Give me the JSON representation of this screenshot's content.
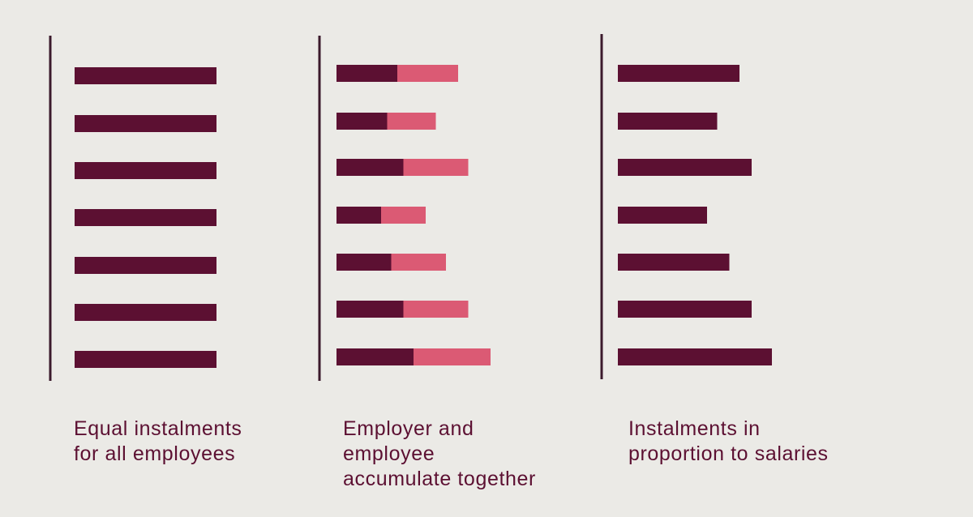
{
  "colors": {
    "background": "#ebeae6",
    "employer": "#5c1032",
    "employee": "#db5a74",
    "axis": "#3b1a2c",
    "caption": "#5c1032"
  },
  "chart_data": [
    {
      "type": "bar",
      "orientation": "horizontal",
      "caption_lines": [
        "Equal instalments",
        "for all employees"
      ],
      "series": [
        {
          "color": "employer",
          "values": [
            7,
            7,
            7,
            7,
            7,
            7,
            7
          ]
        }
      ]
    },
    {
      "type": "bar",
      "orientation": "horizontal",
      "stacked": true,
      "caption_lines": [
        "Employer and",
        "employee",
        "accumulate together"
      ],
      "series": [
        {
          "color": "employer",
          "values": [
            3,
            2.5,
            3.3,
            2.2,
            2.7,
            3.3,
            3.8
          ]
        },
        {
          "color": "employee",
          "values": [
            3,
            2.4,
            3.2,
            2.2,
            2.7,
            3.2,
            3.8
          ]
        }
      ]
    },
    {
      "type": "bar",
      "orientation": "horizontal",
      "caption_lines": [
        "Instalments in",
        "proportion to salaries"
      ],
      "series": [
        {
          "color": "employer",
          "values": [
            6,
            4.9,
            6.6,
            4.4,
            5.5,
            6.6,
            7.6
          ]
        }
      ]
    }
  ]
}
